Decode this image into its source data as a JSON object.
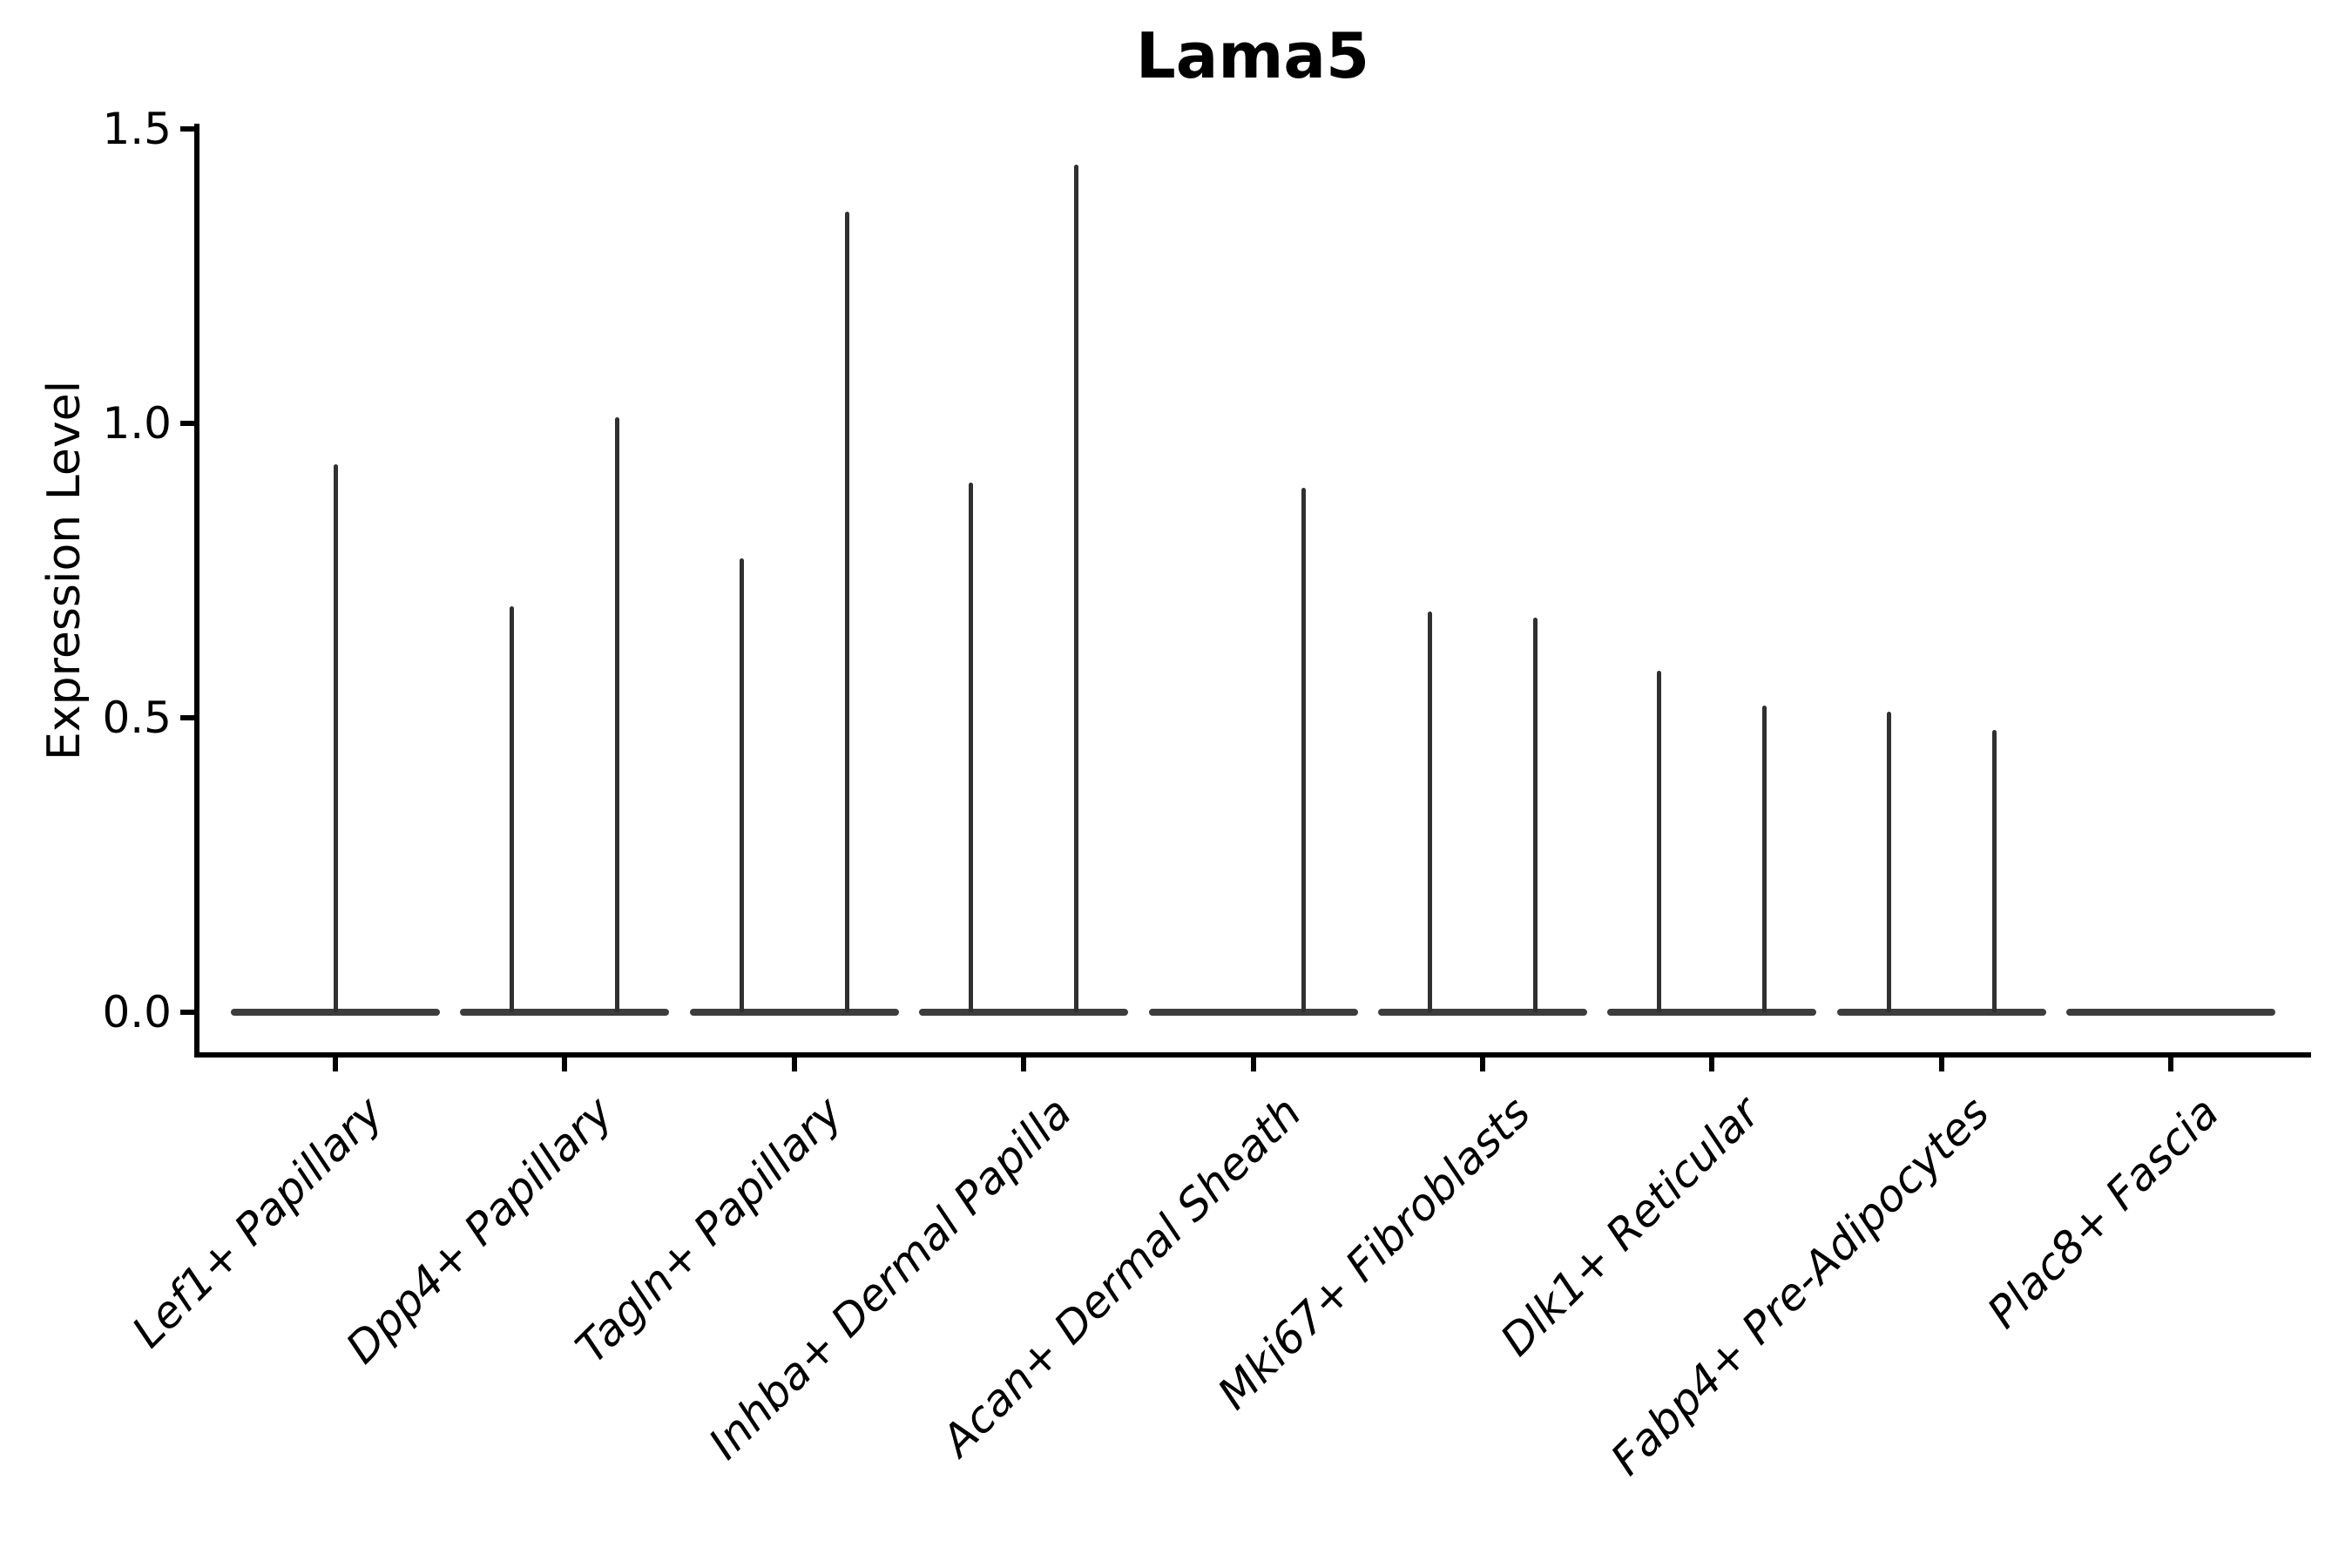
{
  "title": "Lama5",
  "axes": {
    "ylabel": "Expression Level",
    "ytick_labels": [
      "0.0",
      "0.5",
      "1.0",
      "1.5"
    ]
  },
  "colors": {
    "spike": "#303030",
    "base": "#3d3d3d",
    "spine": "#000000",
    "text": "#000000"
  },
  "chart_data": {
    "type": "violin",
    "title": "Lama5",
    "xlabel": "",
    "ylabel": "Expression Level",
    "ylim": [
      0,
      1.5
    ],
    "yticks": [
      0.0,
      0.5,
      1.0,
      1.5
    ],
    "legend": "none",
    "grid": false,
    "style": "zero-inflated expression violins: wide flat body at 0 with thin spikes up to the maximum expression value; spike pos is the offset from the category center in category-width units",
    "categories": [
      "Lef1+ Papillary",
      "Dpp4+ Papillary",
      "Tagln+ Papillary",
      "Inhba+ Dermal Papilla",
      "Acan+ Dermal Sheath",
      "Mki67+ Fibroblasts",
      "Dlk1+ Reticular",
      "Fabp4+ Pre-Adipocytes",
      "Plac8+ Fascia"
    ],
    "base_half_width": 0.45,
    "violins": [
      {
        "category": "Lef1+ Papillary",
        "spikes": [
          {
            "pos": 0.0,
            "max": 0.93
          }
        ]
      },
      {
        "category": "Dpp4+ Papillary",
        "spikes": [
          {
            "pos": -0.23,
            "max": 0.69
          },
          {
            "pos": 0.23,
            "max": 1.01
          }
        ]
      },
      {
        "category": "Tagln+ Papillary",
        "spikes": [
          {
            "pos": -0.23,
            "max": 0.77
          },
          {
            "pos": 0.23,
            "max": 1.36
          }
        ]
      },
      {
        "category": "Inhba+ Dermal Papilla",
        "spikes": [
          {
            "pos": -0.23,
            "max": 0.9
          },
          {
            "pos": 0.23,
            "max": 1.44
          }
        ]
      },
      {
        "category": "Acan+ Dermal Sheath",
        "spikes": [
          {
            "pos": 0.22,
            "max": 0.89
          }
        ]
      },
      {
        "category": "Mki67+ Fibroblasts",
        "spikes": [
          {
            "pos": -0.23,
            "max": 0.68
          },
          {
            "pos": 0.23,
            "max": 0.67
          }
        ]
      },
      {
        "category": "Dlk1+ Reticular",
        "spikes": [
          {
            "pos": -0.23,
            "max": 0.58
          },
          {
            "pos": 0.23,
            "max": 0.52
          }
        ]
      },
      {
        "category": "Fabp4+ Pre-Adipocytes",
        "spikes": [
          {
            "pos": -0.23,
            "max": 0.51
          },
          {
            "pos": 0.23,
            "max": 0.48
          }
        ]
      },
      {
        "category": "Plac8+ Fascia",
        "spikes": []
      }
    ]
  }
}
